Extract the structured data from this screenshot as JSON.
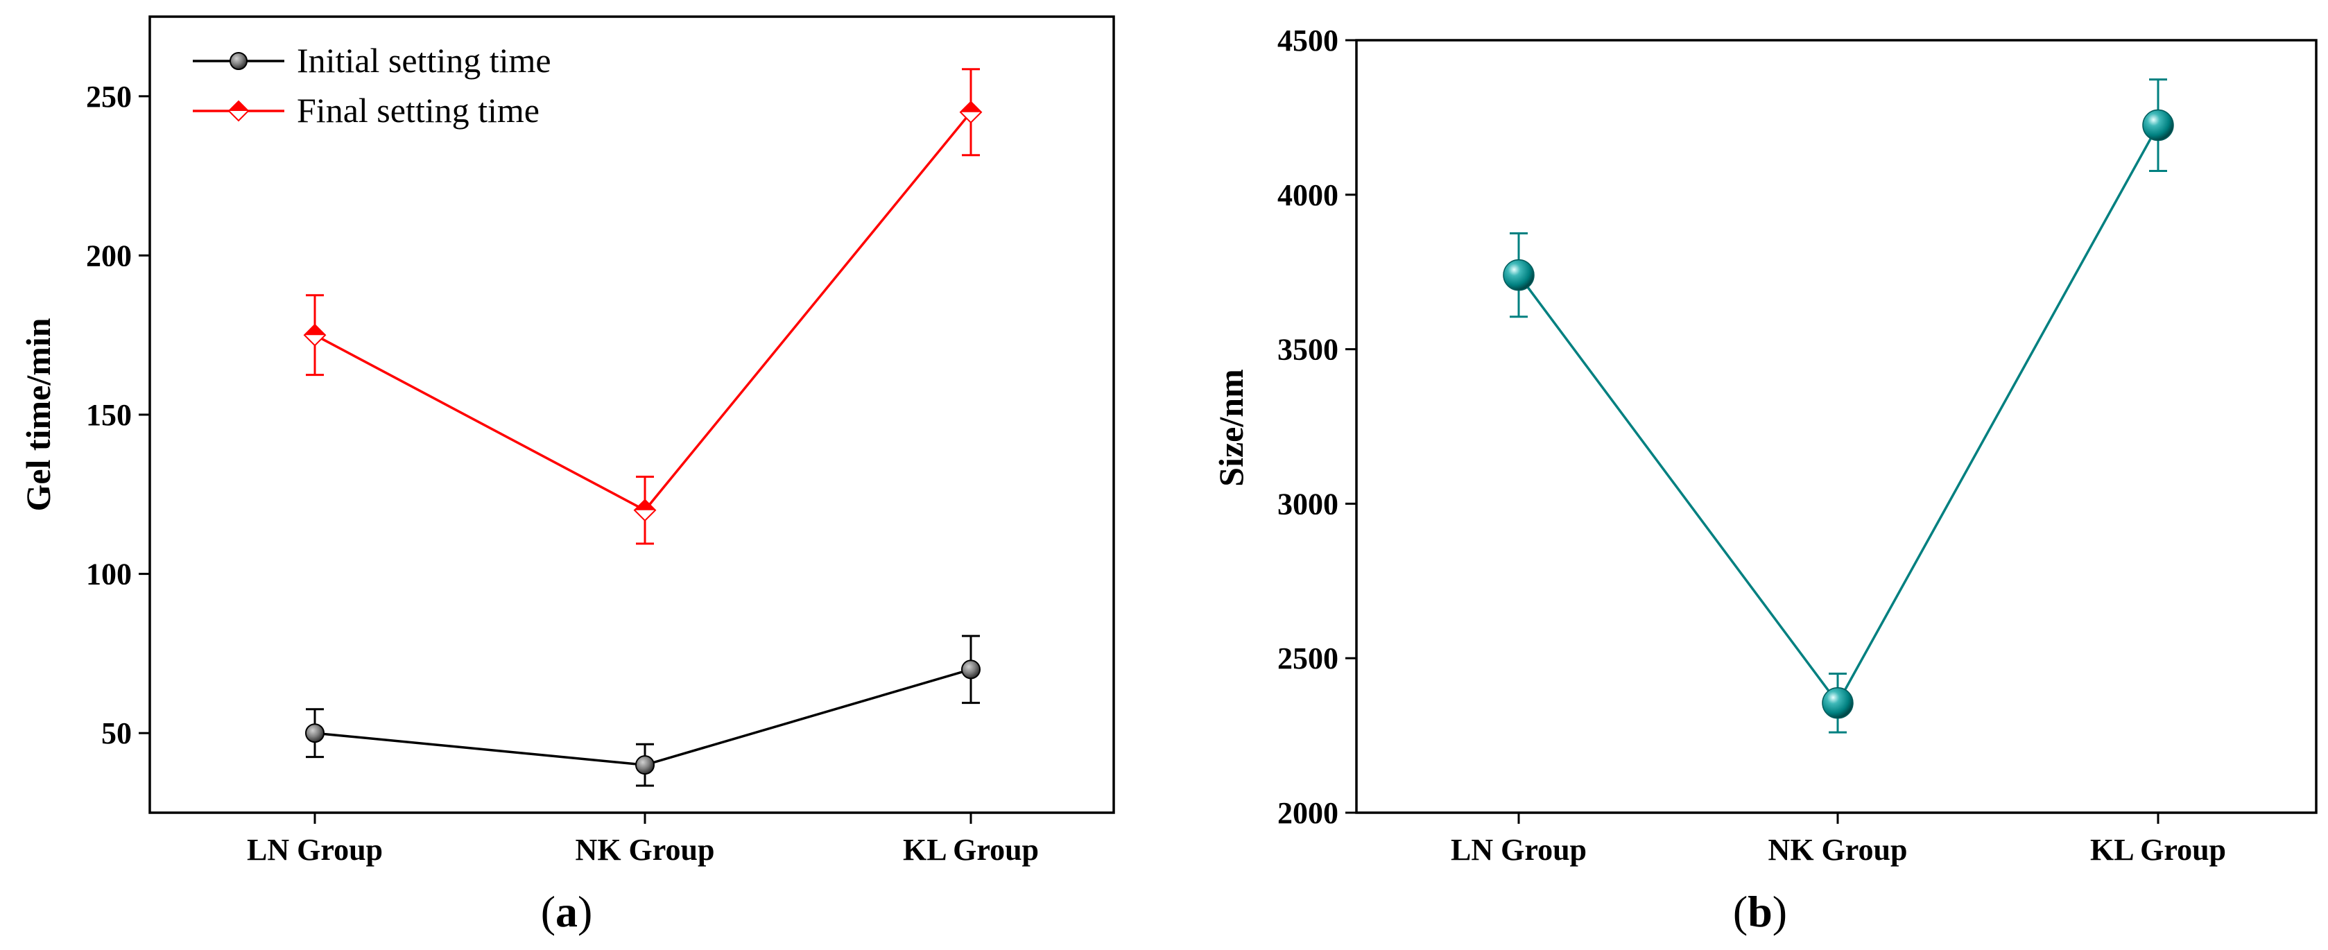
{
  "chart_data": [
    {
      "type": "line",
      "panel_label": "a",
      "categories": [
        "LN Group",
        "NK Group",
        "KL Group"
      ],
      "xlabel": "",
      "ylabel": "Gel time/min",
      "ylim": [
        25,
        275
      ],
      "yticks": [
        50,
        100,
        150,
        200,
        250
      ],
      "legend_position": "top-left",
      "series": [
        {
          "name": "Initial setting time",
          "color": "#000000",
          "marker": "circle",
          "values": [
            50,
            40,
            70
          ],
          "errors": [
            7.5,
            6.5,
            10.5
          ]
        },
        {
          "name": "Final setting time",
          "color": "#ff0000",
          "marker": "diamond",
          "values": [
            175,
            120,
            245
          ],
          "errors": [
            12.5,
            10.5,
            13.5
          ]
        }
      ]
    },
    {
      "type": "line",
      "panel_label": "b",
      "categories": [
        "LN Group",
        "NK Group",
        "KL Group"
      ],
      "xlabel": "",
      "ylabel": "Size/nm",
      "ylim": [
        2000,
        4500
      ],
      "yticks": [
        2000,
        2500,
        3000,
        3500,
        4000,
        4500
      ],
      "series": [
        {
          "name": "Size",
          "color": "#008080",
          "marker": "sphere",
          "values": [
            3740,
            2355,
            4225
          ],
          "errors": [
            135,
            95,
            148
          ]
        }
      ]
    }
  ]
}
